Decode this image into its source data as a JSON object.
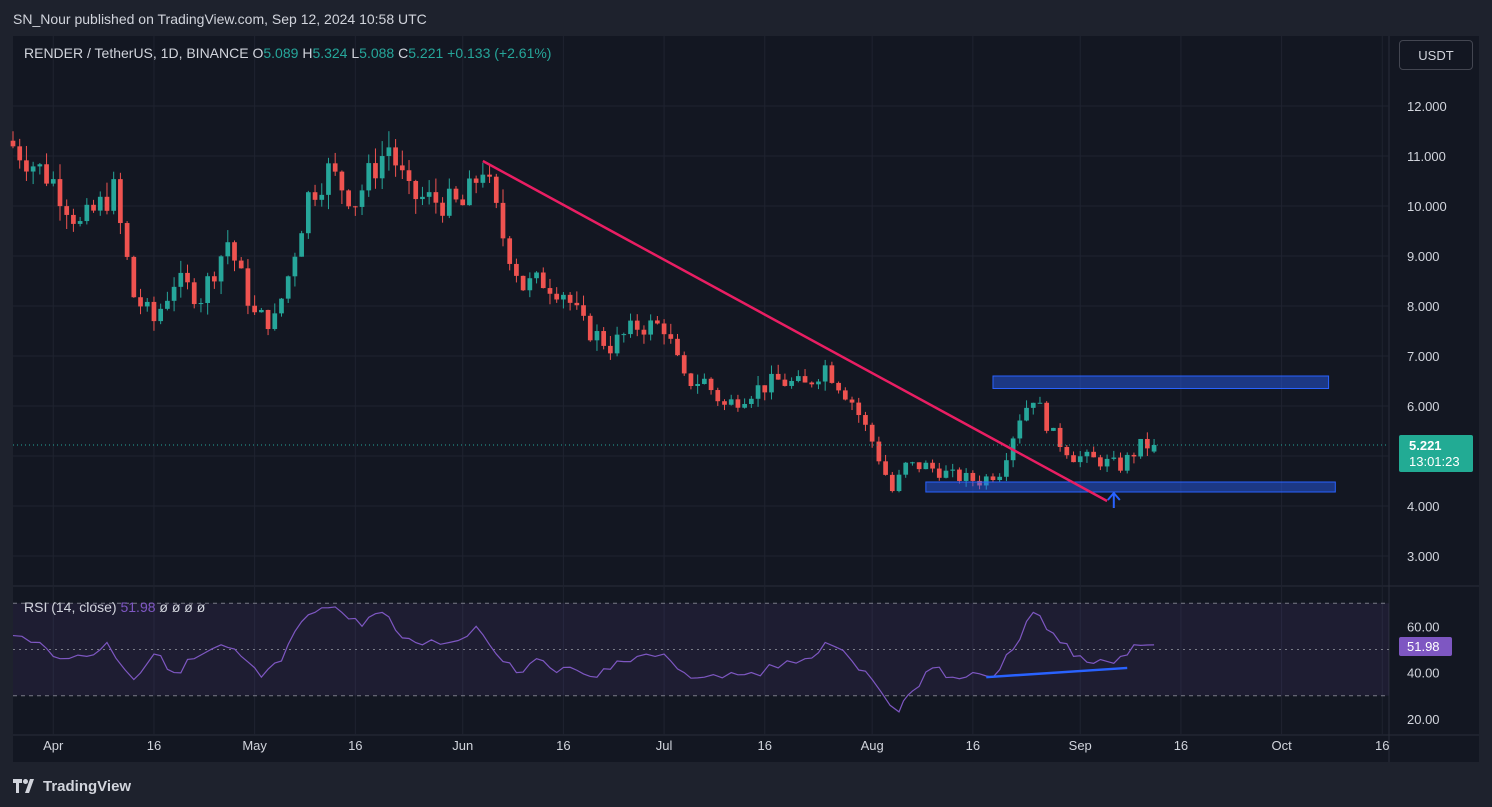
{
  "header": {
    "publisher": "SN_Nour published on TradingView.com, Sep 12, 2024 10:58 UTC"
  },
  "legend": {
    "symbol": "RENDER / TetherUS, 1D, BINANCE",
    "open_label": "O",
    "open": "5.089",
    "high_label": "H",
    "high": "5.324",
    "low_label": "L",
    "low": "5.088",
    "close_label": "C",
    "close": "5.221",
    "change": "+0.133 (+2.61%)"
  },
  "currency_button": "USDT",
  "price_tag": {
    "price": "5.221",
    "countdown": "13:01:23"
  },
  "rsi_legend": {
    "label": "RSI (14, close)",
    "value": "51.98",
    "extras": "ø ø ø ø"
  },
  "rsi_tag": "51.98",
  "footer": {
    "brand": "TradingView"
  },
  "colors": {
    "background": "#131722",
    "up": "#26a69a",
    "down": "#ef5350",
    "trendline": "#e91e63",
    "zone": "#2962ff",
    "rsi": "#7e57c2"
  },
  "icons": [
    "tradingview-logo-icon",
    "up-arrow-icon"
  ],
  "chart_data": [
    {
      "type": "candlestick",
      "title": "RENDER / TetherUS, 1D, BINANCE",
      "x_tick_labels": [
        "Apr",
        "16",
        "May",
        "16",
        "Jun",
        "16",
        "Jul",
        "16",
        "Aug",
        "16",
        "Sep",
        "16",
        "Oct",
        "16"
      ],
      "y_tick_labels": [
        "12.000",
        "11.000",
        "10.000",
        "9.000",
        "8.000",
        "7.000",
        "6.000",
        "5.000",
        "4.000",
        "3.000"
      ],
      "ylim": [
        2.4,
        13.4
      ],
      "x_range_days": [
        "2024-03-26",
        "2024-10-17"
      ],
      "grid": true,
      "last_price": 5.221,
      "closes": [
        {
          "date": "2024-03-26",
          "close": 11.2
        },
        {
          "date": "2024-04-01",
          "close": 10.5
        },
        {
          "date": "2024-04-05",
          "close": 9.6
        },
        {
          "date": "2024-04-10",
          "close": 10.3
        },
        {
          "date": "2024-04-13",
          "close": 8.2
        },
        {
          "date": "2024-04-16",
          "close": 7.7
        },
        {
          "date": "2024-04-19",
          "close": 8.5
        },
        {
          "date": "2024-04-23",
          "close": 8.2
        },
        {
          "date": "2024-04-27",
          "close": 9.3
        },
        {
          "date": "2024-05-01",
          "close": 7.8
        },
        {
          "date": "2024-05-04",
          "close": 7.7
        },
        {
          "date": "2024-05-06",
          "close": 8.6
        },
        {
          "date": "2024-05-09",
          "close": 10.2
        },
        {
          "date": "2024-05-12",
          "close": 10.7
        },
        {
          "date": "2024-05-16",
          "close": 10.1
        },
        {
          "date": "2024-05-18",
          "close": 10.6
        },
        {
          "date": "2024-05-21",
          "close": 11.2
        },
        {
          "date": "2024-05-24",
          "close": 10.2
        },
        {
          "date": "2024-05-28",
          "close": 10.1
        },
        {
          "date": "2024-06-01",
          "close": 10.0
        },
        {
          "date": "2024-06-04",
          "close": 10.8
        },
        {
          "date": "2024-06-07",
          "close": 9.4
        },
        {
          "date": "2024-06-10",
          "close": 8.4
        },
        {
          "date": "2024-06-13",
          "close": 8.5
        },
        {
          "date": "2024-06-16",
          "close": 8.3
        },
        {
          "date": "2024-06-19",
          "close": 7.6
        },
        {
          "date": "2024-06-23",
          "close": 7.2
        },
        {
          "date": "2024-06-27",
          "close": 7.6
        },
        {
          "date": "2024-07-01",
          "close": 7.6
        },
        {
          "date": "2024-07-04",
          "close": 6.5
        },
        {
          "date": "2024-07-07",
          "close": 6.5
        },
        {
          "date": "2024-07-10",
          "close": 6.0
        },
        {
          "date": "2024-07-14",
          "close": 6.3
        },
        {
          "date": "2024-07-18",
          "close": 6.5
        },
        {
          "date": "2024-07-22",
          "close": 6.4
        },
        {
          "date": "2024-07-25",
          "close": 6.8
        },
        {
          "date": "2024-07-29",
          "close": 6.1
        },
        {
          "date": "2024-08-01",
          "close": 5.3
        },
        {
          "date": "2024-08-04",
          "close": 4.3
        },
        {
          "date": "2024-08-06",
          "close": 4.8
        },
        {
          "date": "2024-08-09",
          "close": 4.8
        },
        {
          "date": "2024-08-13",
          "close": 4.6
        },
        {
          "date": "2024-08-17",
          "close": 4.5
        },
        {
          "date": "2024-08-20",
          "close": 4.7
        },
        {
          "date": "2024-08-23",
          "close": 5.8
        },
        {
          "date": "2024-08-25",
          "close": 6.2
        },
        {
          "date": "2024-08-28",
          "close": 5.4
        },
        {
          "date": "2024-08-31",
          "close": 5.0
        },
        {
          "date": "2024-09-04",
          "close": 4.9
        },
        {
          "date": "2024-09-07",
          "close": 4.8
        },
        {
          "date": "2024-09-10",
          "close": 5.2
        },
        {
          "date": "2024-09-12",
          "close": 5.221
        }
      ],
      "annotations": {
        "trendline": [
          {
            "date": "2024-06-04",
            "price": 10.9
          },
          {
            "date": "2024-09-05",
            "price": 4.1
          }
        ],
        "resistance_zone": {
          "from": "2024-08-19",
          "to": "2024-10-08",
          "low": 6.35,
          "high": 6.6
        },
        "support_zone": {
          "from": "2024-08-09",
          "to": "2024-10-09",
          "low": 4.28,
          "high": 4.48
        },
        "arrow": {
          "date": "2024-09-06",
          "price": 4.0
        }
      }
    },
    {
      "type": "line",
      "title": "RSI (14, close)",
      "y_tick_labels": [
        "60.00",
        "40.00",
        "20.00"
      ],
      "ylim": [
        13,
        77
      ],
      "bands": [
        30,
        50,
        70
      ],
      "last_value": 51.98,
      "series": [
        {
          "values": [
            {
              "date": "2024-03-26",
              "value": 56
            },
            {
              "date": "2024-03-30",
              "value": 53
            },
            {
              "date": "2024-04-02",
              "value": 46
            },
            {
              "date": "2024-04-06",
              "value": 47
            },
            {
              "date": "2024-04-09",
              "value": 53
            },
            {
              "date": "2024-04-13",
              "value": 37
            },
            {
              "date": "2024-04-16",
              "value": 48
            },
            {
              "date": "2024-04-19",
              "value": 40
            },
            {
              "date": "2024-04-22",
              "value": 46
            },
            {
              "date": "2024-04-26",
              "value": 52
            },
            {
              "date": "2024-04-29",
              "value": 47
            },
            {
              "date": "2024-05-02",
              "value": 38
            },
            {
              "date": "2024-05-05",
              "value": 45
            },
            {
              "date": "2024-05-08",
              "value": 62
            },
            {
              "date": "2024-05-11",
              "value": 68
            },
            {
              "date": "2024-05-14",
              "value": 66
            },
            {
              "date": "2024-05-17",
              "value": 60
            },
            {
              "date": "2024-05-20",
              "value": 66
            },
            {
              "date": "2024-05-23",
              "value": 55
            },
            {
              "date": "2024-05-26",
              "value": 52
            },
            {
              "date": "2024-05-30",
              "value": 53
            },
            {
              "date": "2024-06-03",
              "value": 60
            },
            {
              "date": "2024-06-06",
              "value": 48
            },
            {
              "date": "2024-06-09",
              "value": 40
            },
            {
              "date": "2024-06-12",
              "value": 46
            },
            {
              "date": "2024-06-15",
              "value": 40
            },
            {
              "date": "2024-06-18",
              "value": 41
            },
            {
              "date": "2024-06-21",
              "value": 38
            },
            {
              "date": "2024-06-24",
              "value": 45
            },
            {
              "date": "2024-06-27",
              "value": 47
            },
            {
              "date": "2024-07-01",
              "value": 48
            },
            {
              "date": "2024-07-04",
              "value": 40
            },
            {
              "date": "2024-07-07",
              "value": 38
            },
            {
              "date": "2024-07-11",
              "value": 40
            },
            {
              "date": "2024-07-14",
              "value": 40
            },
            {
              "date": "2024-07-18",
              "value": 42
            },
            {
              "date": "2024-07-22",
              "value": 46
            },
            {
              "date": "2024-07-25",
              "value": 53
            },
            {
              "date": "2024-07-29",
              "value": 45
            },
            {
              "date": "2024-08-01",
              "value": 37
            },
            {
              "date": "2024-08-05",
              "value": 23
            },
            {
              "date": "2024-08-07",
              "value": 32
            },
            {
              "date": "2024-08-10",
              "value": 42
            },
            {
              "date": "2024-08-13",
              "value": 38
            },
            {
              "date": "2024-08-16",
              "value": 40
            },
            {
              "date": "2024-08-19",
              "value": 38
            },
            {
              "date": "2024-08-22",
              "value": 50
            },
            {
              "date": "2024-08-25",
              "value": 66
            },
            {
              "date": "2024-08-28",
              "value": 57
            },
            {
              "date": "2024-08-31",
              "value": 47
            },
            {
              "date": "2024-09-03",
              "value": 44
            },
            {
              "date": "2024-09-06",
              "value": 44
            },
            {
              "date": "2024-09-09",
              "value": 52
            },
            {
              "date": "2024-09-12",
              "value": 51.98
            }
          ]
        }
      ],
      "annotations": {
        "divergence_line": [
          {
            "date": "2024-08-18",
            "value": 38
          },
          {
            "date": "2024-09-08",
            "value": 42
          }
        ]
      }
    }
  ]
}
